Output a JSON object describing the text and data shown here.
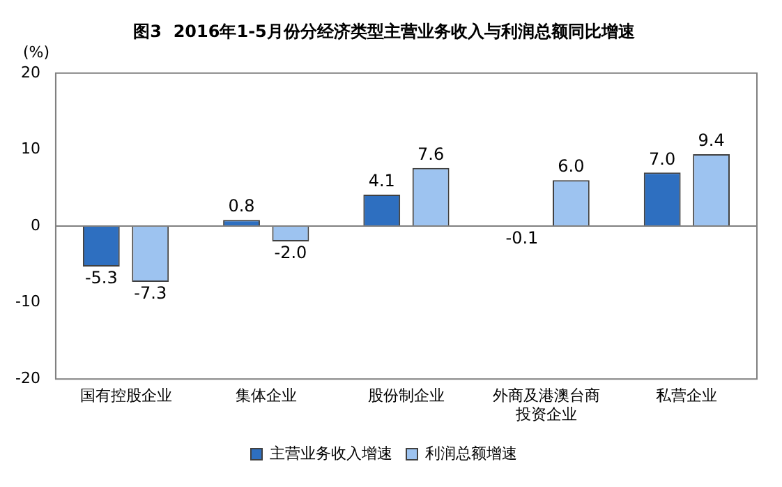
{
  "chart_data": {
    "type": "bar",
    "title": "图3  2016年1-5月份分经济类型主营业务收入与利润总额同比增速",
    "ylabel": "(%)",
    "categories": [
      "国有控股企业",
      "集体企业",
      "股份制企业",
      "外商及港澳台商投资企业",
      "私营企业"
    ],
    "series": [
      {
        "name": "主营业务收入增速",
        "color": "#2e6fc0",
        "values": [
          -5.3,
          0.8,
          4.1,
          -0.1,
          7.0
        ],
        "value_labels": [
          "-5.3",
          "0.8",
          "4.1",
          "-0.1",
          "7.0"
        ]
      },
      {
        "name": "利润总额增速",
        "color": "#9dc3f0",
        "values": [
          -7.3,
          -2.0,
          7.6,
          6.0,
          9.4
        ],
        "value_labels": [
          "-7.3",
          "-2.0",
          "7.6",
          "6.0",
          "9.4"
        ]
      }
    ],
    "ylim": [
      -20,
      20
    ],
    "yticks": [
      -20,
      -10,
      0,
      10,
      20
    ],
    "grid": false,
    "ref_lines": [
      {
        "axis": "y",
        "value": 0,
        "color": "#808080"
      }
    ],
    "legend": "bottom"
  }
}
